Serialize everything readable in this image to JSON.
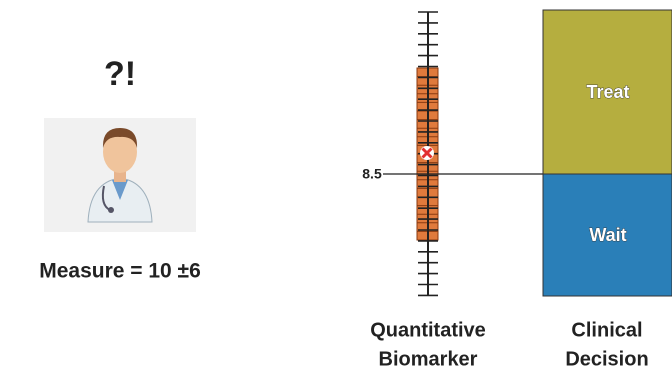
{
  "left": {
    "heading": "?!",
    "caption": "Measure = 10 ±6"
  },
  "biomarker": {
    "threshold_label": "8.5",
    "title_line1": "Quantitative",
    "title_line2": "Biomarker"
  },
  "decision": {
    "upper": "Treat",
    "lower": "Wait",
    "title_line1": "Clinical",
    "title_line2": "Decision"
  }
}
